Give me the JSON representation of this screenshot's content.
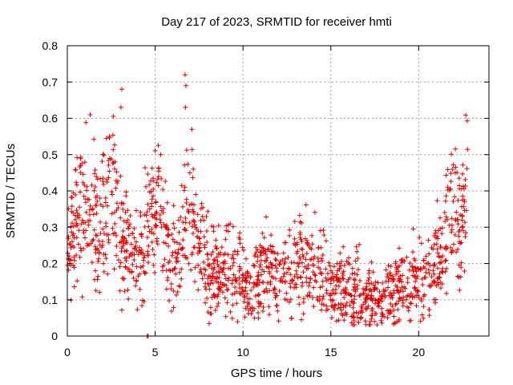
{
  "chart_data": {
    "type": "scatter",
    "title": "Day 217 of 2023, SRMTID for receiver hmti",
    "xlabel": "GPS time / hours",
    "ylabel": "SRMTID / TECUs",
    "xlim": [
      0,
      24
    ],
    "ylim": [
      0,
      0.8
    ],
    "xticks": [
      0,
      5,
      10,
      15,
      20
    ],
    "yticks": [
      0,
      0.1,
      0.2,
      0.3,
      0.4,
      0.5,
      0.6,
      0.7,
      0.8
    ],
    "xtick_labels": [
      "0",
      "5",
      "10",
      "15",
      "20"
    ],
    "ytick_labels": [
      "0",
      "0.1",
      "0.2",
      "0.3",
      "0.4",
      "0.5",
      "0.6",
      "0.7",
      "0.8"
    ],
    "grid": true,
    "marker": "+",
    "series": [
      {
        "name": "SRMTID",
        "color": "#e00000",
        "x": [
          0.0,
          0.2,
          0.4,
          0.6,
          0.8,
          1.0,
          1.2,
          1.4,
          1.6,
          1.8,
          2.0,
          2.2,
          2.4,
          2.6,
          2.8,
          3.0,
          3.2,
          3.4,
          3.6,
          3.8,
          4.0,
          4.2,
          4.4,
          4.6,
          4.8,
          5.0,
          5.2,
          5.4,
          5.6,
          5.8,
          6.0,
          6.2,
          6.4,
          6.6,
          6.8,
          7.0,
          7.2,
          7.4,
          7.6,
          7.8,
          8.0,
          8.2,
          8.4,
          8.6,
          8.8,
          9.0,
          9.2,
          9.4,
          9.6,
          9.8,
          10.0,
          10.2,
          10.4,
          10.6,
          10.8,
          11.0,
          11.2,
          11.4,
          11.6,
          11.8,
          12.0,
          12.2,
          12.4,
          12.6,
          12.8,
          13.0,
          13.2,
          13.4,
          13.6,
          13.8,
          14.0,
          14.2,
          14.4,
          14.6,
          14.8,
          15.0,
          15.2,
          15.4,
          15.6,
          15.8,
          16.0,
          16.2,
          16.4,
          16.6,
          16.8,
          17.0,
          17.2,
          17.4,
          17.6,
          17.8,
          18.0,
          18.2,
          18.4,
          18.6,
          18.8,
          19.0,
          19.2,
          19.4,
          19.6,
          19.8,
          20.0,
          20.2,
          20.4,
          20.6,
          20.8,
          21.0,
          21.2,
          21.4,
          21.6,
          21.8,
          22.0,
          22.2,
          22.4,
          22.6,
          22.8
        ],
        "y": [
          0.22,
          0.25,
          0.28,
          0.3,
          0.35,
          0.38,
          0.36,
          0.33,
          0.34,
          0.3,
          0.32,
          0.36,
          0.4,
          0.42,
          0.37,
          0.3,
          0.26,
          0.24,
          0.25,
          0.23,
          0.2,
          0.24,
          0.28,
          0.3,
          0.31,
          0.33,
          0.35,
          0.3,
          0.26,
          0.22,
          0.2,
          0.21,
          0.24,
          0.3,
          0.34,
          0.36,
          0.3,
          0.27,
          0.25,
          0.24,
          0.2,
          0.18,
          0.17,
          0.16,
          0.17,
          0.2,
          0.22,
          0.2,
          0.18,
          0.17,
          0.15,
          0.14,
          0.13,
          0.14,
          0.15,
          0.16,
          0.18,
          0.19,
          0.18,
          0.17,
          0.16,
          0.17,
          0.18,
          0.19,
          0.2,
          0.22,
          0.23,
          0.21,
          0.2,
          0.19,
          0.2,
          0.18,
          0.17,
          0.15,
          0.14,
          0.13,
          0.12,
          0.13,
          0.14,
          0.13,
          0.12,
          0.11,
          0.12,
          0.13,
          0.11,
          0.1,
          0.09,
          0.1,
          0.1,
          0.09,
          0.1,
          0.11,
          0.12,
          0.11,
          0.12,
          0.13,
          0.14,
          0.13,
          0.14,
          0.15,
          0.16,
          0.17,
          0.18,
          0.17,
          0.19,
          0.2,
          0.22,
          0.25,
          0.3,
          0.38,
          0.35,
          0.32,
          0.3,
          0.34,
          0.42
        ]
      }
    ],
    "outliers": [
      {
        "x": 1.3,
        "y": 0.61
      },
      {
        "x": 3.1,
        "y": 0.68
      },
      {
        "x": 3.05,
        "y": 0.63
      },
      {
        "x": 6.7,
        "y": 0.72
      },
      {
        "x": 6.75,
        "y": 0.69
      },
      {
        "x": 6.72,
        "y": 0.63
      },
      {
        "x": 4.6,
        "y": 0.0
      },
      {
        "x": 4.55,
        "y": 0.0
      }
    ]
  }
}
